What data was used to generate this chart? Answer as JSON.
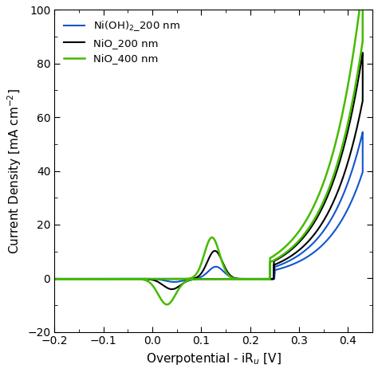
{
  "title": "",
  "xlabel": "Overpotential - iR$_u$ [V]",
  "ylabel": "Current Density [mA cm$^{-2}$]",
  "xlim": [
    -0.2,
    0.45
  ],
  "ylim": [
    -20,
    100
  ],
  "xticks": [
    -0.2,
    -0.1,
    0.0,
    0.1,
    0.2,
    0.3,
    0.4
  ],
  "yticks": [
    -20,
    0,
    20,
    40,
    60,
    80,
    100
  ],
  "legend": [
    {
      "label": "Ni(OH)$_2$_200 nm",
      "color": "#1155cc"
    },
    {
      "label": "NiO_200 nm",
      "color": "#000000"
    },
    {
      "label": "NiO_400 nm",
      "color": "#44bb00"
    }
  ],
  "figsize": [
    4.74,
    4.67
  ],
  "dpi": 100
}
